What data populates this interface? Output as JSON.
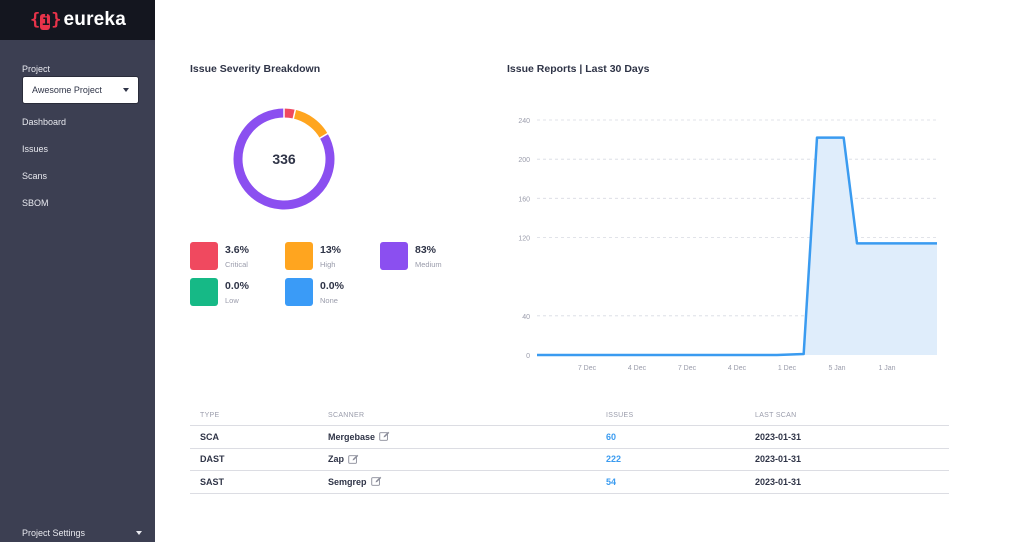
{
  "brand": {
    "name": "eureka",
    "mark_left": "{",
    "mark_i": "i",
    "mark_right": "}"
  },
  "sidebar": {
    "project_label": "Project",
    "project_selected": "Awesome Project",
    "items": [
      {
        "label": "Dashboard"
      },
      {
        "label": "Issues"
      },
      {
        "label": "Scans"
      },
      {
        "label": "SBOM"
      }
    ],
    "footer_label": "Project Settings"
  },
  "severity": {
    "title": "Issue Severity Breakdown",
    "total": "336",
    "items": [
      {
        "pct": "3.6%",
        "label": "Critical",
        "value": 3.6,
        "color": "#f0495f"
      },
      {
        "pct": "13%",
        "label": "High",
        "value": 13,
        "color": "#ffa51f"
      },
      {
        "pct": "83%",
        "label": "Medium",
        "value": 83.4,
        "color": "#8b4ff0"
      },
      {
        "pct": "0.0%",
        "label": "Low",
        "value": 0,
        "color": "#16b986"
      },
      {
        "pct": "0.0%",
        "label": "None",
        "value": 0,
        "color": "#3a9bf7"
      }
    ]
  },
  "reports": {
    "title": "Issue Reports | Last 30 Days"
  },
  "chart_data": {
    "type": "area",
    "title": "Issue Reports | Last 30 Days",
    "xlabel": "",
    "ylabel": "",
    "yticks": [
      0,
      40,
      120,
      160,
      200,
      240
    ],
    "ylim": [
      0,
      240
    ],
    "x_tick_labels": [
      "7 Dec",
      "4 Dec",
      "7 Dec",
      "4 Dec",
      "1 Dec",
      "5 Jan",
      "1 Jan"
    ],
    "series": [
      {
        "values": [
          0,
          0,
          0,
          0,
          0,
          0,
          0,
          0,
          0,
          0,
          0,
          0,
          0,
          0,
          0,
          0,
          0,
          0,
          0,
          0.5,
          1,
          222,
          222,
          222,
          114,
          114,
          114,
          114,
          114,
          114,
          114
        ],
        "color": "#3a9bf0",
        "fill": "#dfedfb"
      }
    ],
    "grid": true
  },
  "table": {
    "headers": {
      "type": "TYPE",
      "scanner": "SCANNER",
      "issues": "ISSUES",
      "last_scan": "LAST SCAN"
    },
    "rows": [
      {
        "type": "SCA",
        "scanner": "Mergebase",
        "issues": "60",
        "last_scan": "2023-01-31"
      },
      {
        "type": "DAST",
        "scanner": "Zap",
        "issues": "222",
        "last_scan": "2023-01-31"
      },
      {
        "type": "SAST",
        "scanner": "Semgrep",
        "issues": "54",
        "last_scan": "2023-01-31"
      }
    ]
  },
  "icons": {
    "edit": "edit-icon",
    "caret": "chevron-down-icon"
  }
}
